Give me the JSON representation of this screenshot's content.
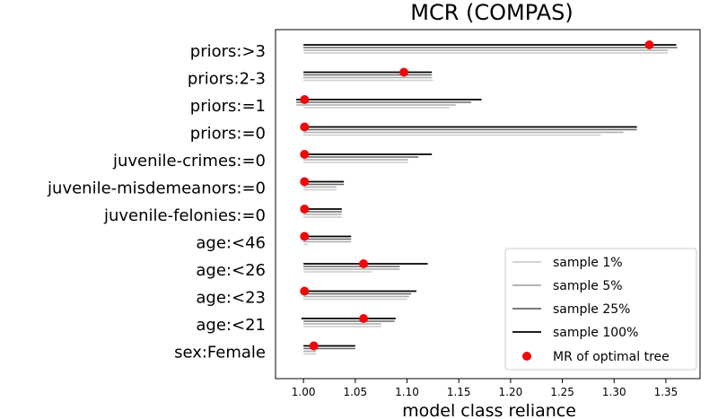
{
  "chart_data": {
    "type": "interval",
    "title": "MCR (COMPAS)",
    "xlabel": "model class reliance",
    "ylabel": "",
    "xlim": [
      0.973,
      1.383
    ],
    "xticks": [
      1.0,
      1.05,
      1.1,
      1.15,
      1.2,
      1.25,
      1.3,
      1.35
    ],
    "xtick_labels": [
      "1.00",
      "1.05",
      "1.10",
      "1.15",
      "1.20",
      "1.25",
      "1.30",
      "1.35"
    ],
    "categories": [
      "priors:>3",
      "priors:2-3",
      "priors:=1",
      "priors:=0",
      "juvenile-crimes:=0",
      "juvenile-misdemeanors:=0",
      "juvenile-felonies:=0",
      "age:<46",
      "age:<26",
      "age:<23",
      "age:<21",
      "sex:Female"
    ],
    "series": [
      {
        "name": "sample 100%",
        "color": "#000000",
        "intervals": [
          [
            1.0,
            1.36
          ],
          [
            1.0,
            1.124
          ],
          [
            0.993,
            1.172
          ],
          [
            1.0,
            1.322
          ],
          [
            1.0,
            1.124
          ],
          [
            1.0,
            1.039
          ],
          [
            1.0,
            1.037
          ],
          [
            1.0,
            1.046
          ],
          [
            1.0,
            1.12
          ],
          [
            1.0,
            1.109
          ],
          [
            0.998,
            1.089
          ],
          [
            1.0,
            1.05
          ]
        ]
      },
      {
        "name": "sample 25%",
        "color": "#666666",
        "intervals": [
          [
            1.0,
            1.361
          ],
          [
            1.0,
            1.124
          ],
          [
            0.993,
            1.162
          ],
          [
            1.0,
            1.322
          ],
          [
            1.0,
            1.111
          ],
          [
            1.0,
            1.039
          ],
          [
            1.0,
            1.037
          ],
          [
            1.0,
            1.046
          ],
          [
            1.0,
            1.093
          ],
          [
            1.0,
            1.104
          ],
          [
            1.0,
            1.088
          ],
          [
            1.0,
            1.05
          ]
        ]
      },
      {
        "name": "sample 5%",
        "color": "#aaaaaa",
        "intervals": [
          [
            1.0,
            1.352
          ],
          [
            1.0,
            1.124
          ],
          [
            0.993,
            1.147
          ],
          [
            1.0,
            1.309
          ],
          [
            1.0,
            1.101
          ],
          [
            1.0,
            1.032
          ],
          [
            1.0,
            1.037
          ],
          [
            1.0,
            1.046
          ],
          [
            1.0,
            1.093
          ],
          [
            1.0,
            1.102
          ],
          [
            1.0,
            1.075
          ],
          [
            1.0,
            1.012
          ]
        ]
      },
      {
        "name": "sample 1%",
        "color": "#cccccc",
        "intervals": [
          [
            1.0,
            1.352
          ],
          [
            1.0,
            1.125
          ],
          [
            1.0,
            1.141
          ],
          [
            1.0,
            1.287
          ],
          [
            1.0,
            1.101
          ],
          [
            1.0,
            1.032
          ],
          [
            1.0,
            1.037
          ],
          [
            1.0,
            1.004
          ],
          [
            1.0,
            1.066
          ],
          [
            1.0,
            1.1
          ],
          [
            1.0,
            1.075
          ],
          [
            1.0,
            1.012
          ]
        ]
      }
    ],
    "markers": {
      "name": "MR of optimal tree",
      "color": "#ee0a0a",
      "values": [
        1.334,
        1.097,
        1.001,
        1.001,
        1.001,
        1.001,
        1.001,
        1.001,
        1.058,
        1.001,
        1.058,
        1.01
      ]
    },
    "legend": {
      "position": "lower-right",
      "entries": [
        "sample 1%",
        "sample 5%",
        "sample 25%",
        "sample 100%",
        "MR of optimal tree"
      ]
    },
    "grid": false
  }
}
